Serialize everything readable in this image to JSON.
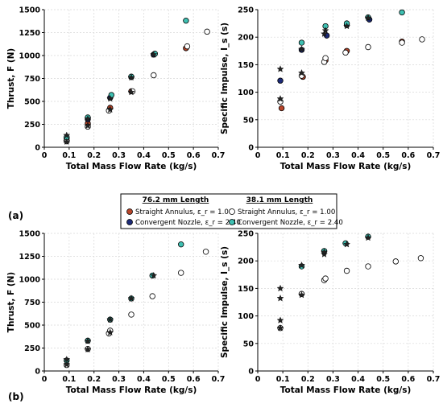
{
  "panel_labels": [
    "(a)",
    "(b)"
  ],
  "legend": {
    "headers": [
      "76.2 mm Length",
      "38.1 mm Length"
    ],
    "entries": [
      {
        "label": "Straight Annulus, ε_r = 1.00",
        "fill": "#b8452a"
      },
      {
        "label": "Convergent Nozzle, ε_r = 2.40",
        "fill": "#1c2a78"
      },
      {
        "label": "Straight Annulus, ε_r = 1.00",
        "fill": "#ffffff"
      },
      {
        "label": "Convergent Nozzle, ε_r = 2.40",
        "fill": "#3ec0b2"
      }
    ]
  },
  "colors": {
    "straight_76": "#b8452a",
    "convergent_76": "#1c2a78",
    "straight_38": "#ffffff",
    "convergent_38": "#3ec0b2",
    "star": "#222222"
  },
  "chart_data": [
    {
      "type": "scatter",
      "panel": "(a)",
      "xlabel": "Total Mass Flow Rate (kg/s)",
      "ylabel": "Thrust, F (N)",
      "xlim": [
        0,
        0.7
      ],
      "ylim": [
        0,
        1500
      ],
      "xticks": [
        "0",
        "0.1",
        "0.2",
        "0.3",
        "0.4",
        "0.5",
        "0.6",
        "0.7"
      ],
      "yticks": [
        "0",
        "250",
        "500",
        "750",
        "1000",
        "1250",
        "1500"
      ],
      "grid": true,
      "series": [
        {
          "name": "Straight Annulus, ε_r = 1.00 (76.2 mm)",
          "marker": "circle",
          "fill": "#b8452a",
          "points": [
            [
              0.09,
              75
            ],
            [
              0.175,
              260
            ],
            [
              0.265,
              430
            ],
            [
              0.35,
              610
            ],
            [
              0.57,
              1080
            ]
          ]
        },
        {
          "name": "Convergent Nozzle, ε_r = 2.40 (76.2 mm)",
          "marker": "circle",
          "fill": "#1c2a78",
          "points": [
            [
              0.09,
              100
            ],
            [
              0.175,
              305
            ],
            [
              0.265,
              540
            ],
            [
              0.35,
              765
            ],
            [
              0.44,
              1010
            ]
          ]
        },
        {
          "name": "Straight Annulus, ε_r = 1.00 (38.1 mm)",
          "marker": "circle",
          "fill": "#ffffff",
          "points": [
            [
              0.09,
              65
            ],
            [
              0.175,
              225
            ],
            [
              0.26,
              400
            ],
            [
              0.355,
              610
            ],
            [
              0.44,
              785
            ],
            [
              0.575,
              1100
            ],
            [
              0.655,
              1260
            ]
          ]
        },
        {
          "name": "Convergent Nozzle, ε_r = 2.40 (38.1 mm)",
          "marker": "circle",
          "fill": "#3ec0b2",
          "points": [
            [
              0.09,
              110
            ],
            [
              0.175,
              325
            ],
            [
              0.27,
              570
            ],
            [
              0.35,
              770
            ],
            [
              0.445,
              1020
            ],
            [
              0.57,
              1380
            ]
          ]
        },
        {
          "name": "",
          "marker": "star",
          "fill": "#222222",
          "points": [
            [
              0.09,
              60
            ],
            [
              0.09,
              130
            ],
            [
              0.175,
              235
            ],
            [
              0.175,
              310
            ],
            [
              0.265,
              410
            ],
            [
              0.265,
              530
            ],
            [
              0.35,
              600
            ],
            [
              0.35,
              760
            ],
            [
              0.44,
              1010
            ]
          ]
        }
      ]
    },
    {
      "type": "scatter",
      "panel": "(a)",
      "xlabel": "Total Mass Flow Rate (kg/s)",
      "ylabel": "Specific Impulse, I_s (s)",
      "xlim": [
        0,
        0.7
      ],
      "ylim": [
        0,
        250
      ],
      "xticks": [
        "0",
        "0.1",
        "0.2",
        "0.3",
        "0.4",
        "0.5",
        "0.6",
        "0.7"
      ],
      "yticks": [
        "0",
        "50",
        "100",
        "150",
        "200",
        "250"
      ],
      "grid": true,
      "series": [
        {
          "name": "Straight Annulus, ε_r = 1.00 (76.2 mm)",
          "marker": "circle",
          "fill": "#b8452a",
          "points": [
            [
              0.095,
              71
            ],
            [
              0.18,
              128
            ],
            [
              0.27,
              158
            ],
            [
              0.355,
              175
            ],
            [
              0.575,
              192
            ]
          ]
        },
        {
          "name": "Convergent Nozzle, ε_r = 2.40 (76.2 mm)",
          "marker": "circle",
          "fill": "#1c2a78",
          "points": [
            [
              0.09,
              121
            ],
            [
              0.175,
              177
            ],
            [
              0.275,
              203
            ],
            [
              0.355,
              222
            ],
            [
              0.445,
              232
            ]
          ]
        },
        {
          "name": "Straight Annulus, ε_r = 1.00 (38.1 mm)",
          "marker": "circle",
          "fill": "#ffffff",
          "points": [
            [
              0.09,
              83
            ],
            [
              0.175,
              130
            ],
            [
              0.265,
              155
            ],
            [
              0.27,
              162
            ],
            [
              0.35,
              172
            ],
            [
              0.44,
              182
            ],
            [
              0.575,
              190
            ],
            [
              0.655,
              196
            ]
          ]
        },
        {
          "name": "Convergent Nozzle, ε_r = 2.40 (38.1 mm)",
          "marker": "circle",
          "fill": "#3ec0b2",
          "points": [
            [
              0.175,
              190
            ],
            [
              0.27,
              220
            ],
            [
              0.355,
              225
            ],
            [
              0.44,
              236
            ],
            [
              0.575,
              245
            ]
          ]
        },
        {
          "name": "",
          "marker": "star",
          "fill": "#222222",
          "points": [
            [
              0.09,
              88
            ],
            [
              0.09,
              142
            ],
            [
              0.175,
              135
            ],
            [
              0.175,
              178
            ],
            [
              0.265,
              206
            ],
            [
              0.27,
              212
            ],
            [
              0.355,
              220
            ],
            [
              0.44,
              235
            ]
          ]
        }
      ]
    },
    {
      "type": "scatter",
      "panel": "(b)",
      "xlabel": "Total Mass Flow Rate (kg/s)",
      "ylabel": "Thrust, F (N)",
      "xlim": [
        0,
        0.7
      ],
      "ylim": [
        0,
        1500
      ],
      "xticks": [
        "0",
        "0.1",
        "0.2",
        "0.3",
        "0.4",
        "0.5",
        "0.6",
        "0.7"
      ],
      "yticks": [
        "0",
        "250",
        "500",
        "750",
        "1000",
        "1250",
        "1500"
      ],
      "grid": true,
      "series": [
        {
          "name": "Straight Annulus, ε_r = 1.00 (38.1 mm)",
          "marker": "circle",
          "fill": "#ffffff",
          "points": [
            [
              0.09,
              65
            ],
            [
              0.175,
              240
            ],
            [
              0.26,
              410
            ],
            [
              0.265,
              440
            ],
            [
              0.35,
              615
            ],
            [
              0.435,
              815
            ],
            [
              0.55,
              1070
            ],
            [
              0.65,
              1300
            ]
          ]
        },
        {
          "name": "Convergent Nozzle, ε_r = 2.40 (38.1 mm)",
          "marker": "circle",
          "fill": "#3ec0b2",
          "points": [
            [
              0.09,
              115
            ],
            [
              0.175,
              330
            ],
            [
              0.265,
              560
            ],
            [
              0.35,
              790
            ],
            [
              0.435,
              1040
            ],
            [
              0.55,
              1380
            ]
          ]
        },
        {
          "name": "",
          "marker": "star",
          "fill": "#222222",
          "points": [
            [
              0.09,
              70
            ],
            [
              0.09,
              125
            ],
            [
              0.175,
              235
            ],
            [
              0.175,
              325
            ],
            [
              0.265,
              420
            ],
            [
              0.265,
              560
            ],
            [
              0.35,
              790
            ],
            [
              0.44,
              1040
            ]
          ]
        }
      ]
    },
    {
      "type": "scatter",
      "panel": "(b)",
      "xlabel": "Total Mass Flow Rate (kg/s)",
      "ylabel": "Specific Impulse, I_s (s)",
      "xlim": [
        0,
        0.7
      ],
      "ylim": [
        0,
        250
      ],
      "xticks": [
        "0",
        "0.1",
        "0.2",
        "0.3",
        "0.4",
        "0.5",
        "0.6",
        "0.7"
      ],
      "yticks": [
        "0",
        "50",
        "100",
        "150",
        "200",
        "250"
      ],
      "grid": true,
      "series": [
        {
          "name": "Straight Annulus, ε_r = 1.00 (38.1 mm)",
          "marker": "circle",
          "fill": "#ffffff",
          "points": [
            [
              0.09,
              78
            ],
            [
              0.175,
              140
            ],
            [
              0.265,
              165
            ],
            [
              0.27,
              168
            ],
            [
              0.355,
              182
            ],
            [
              0.44,
              190
            ],
            [
              0.55,
              199
            ],
            [
              0.65,
              205
            ]
          ]
        },
        {
          "name": "Convergent Nozzle, ε_r = 2.40 (38.1 mm)",
          "marker": "circle",
          "fill": "#3ec0b2",
          "points": [
            [
              0.175,
              190
            ],
            [
              0.265,
              218
            ],
            [
              0.35,
              232
            ],
            [
              0.44,
              244
            ]
          ]
        },
        {
          "name": "",
          "marker": "star",
          "fill": "#222222",
          "points": [
            [
              0.09,
              78
            ],
            [
              0.09,
              92
            ],
            [
              0.09,
              132
            ],
            [
              0.09,
              150
            ],
            [
              0.175,
              138
            ],
            [
              0.175,
              192
            ],
            [
              0.265,
              212
            ],
            [
              0.265,
              216
            ],
            [
              0.355,
              230
            ],
            [
              0.44,
              242
            ]
          ]
        }
      ]
    }
  ]
}
